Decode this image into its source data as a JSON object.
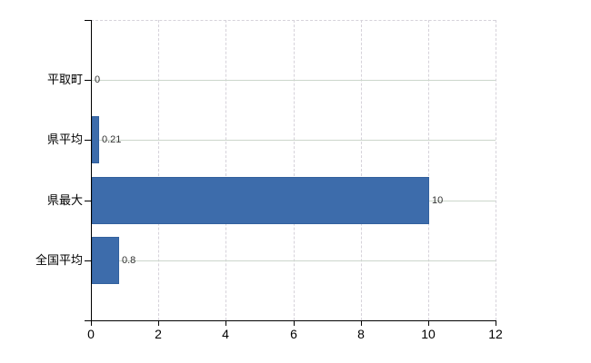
{
  "chart": {
    "background_color": "#ffffff",
    "bar_color": "#3d6cab",
    "bar_border_color": "#33619e",
    "axis_color": "#000000",
    "grid_vertical_color": "#d6d2da",
    "grid_horizontal_color": "#ccd6cb",
    "value_label_color": "#333333",
    "tick_label_color": "#000000"
  },
  "chart_data": {
    "type": "bar",
    "orientation": "horizontal",
    "title": "",
    "xlabel": "",
    "ylabel": "",
    "categories": [
      "平取町",
      "県平均",
      "県最大",
      "全国平均"
    ],
    "values": [
      0,
      0.21,
      10,
      0.8
    ],
    "value_labels": [
      "0",
      "0.21",
      "10",
      "0.8"
    ],
    "xlim": [
      0,
      12
    ],
    "x_ticks": [
      "0",
      "2",
      "4",
      "6",
      "8",
      "10",
      "12"
    ],
    "grid": true,
    "legend": false
  }
}
